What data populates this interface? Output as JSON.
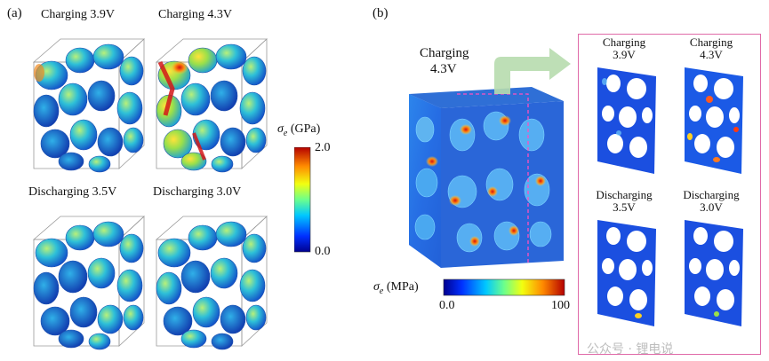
{
  "panel_a": {
    "label": "(a)",
    "cubes": [
      {
        "title": "Charging 3.9V"
      },
      {
        "title": "Charging 4.3V"
      },
      {
        "title": "Discharging 3.5V"
      },
      {
        "title": "Discharging 3.0V"
      }
    ],
    "colorbar": {
      "symbol": "σ",
      "subscript": "e",
      "unit": "(GPa)",
      "max": "2.0",
      "min": "0.0"
    }
  },
  "panel_b": {
    "label": "(b)",
    "main_title_line1": "Charging",
    "main_title_line2": "4.3V",
    "colorbar": {
      "symbol": "σ",
      "subscript": "e",
      "unit": "(MPa)",
      "min": "0.0",
      "max": "100"
    },
    "slices": [
      {
        "line1": "Charging",
        "line2": "3.9V"
      },
      {
        "line1": "Charging",
        "line2": "4.3V"
      },
      {
        "line1": "Discharging",
        "line2": "3.5V"
      },
      {
        "line1": "Discharging",
        "line2": "3.0V"
      }
    ]
  },
  "watermark": "公众号 · 锂电说",
  "colors": {
    "inset_frame": "#e06aa8",
    "arrow": "#b7dcae",
    "cube_base": "#2f6fd6",
    "hot": "#e8301e"
  }
}
